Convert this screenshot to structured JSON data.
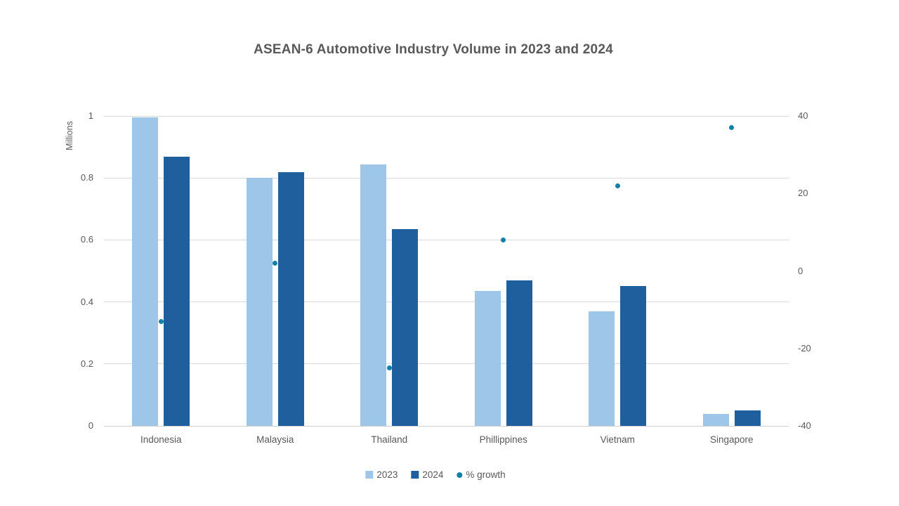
{
  "title": "ASEAN-6 Automotive Industry Volume in 2023 and 2024",
  "chart_data": {
    "type": "bar",
    "subtype": "combo-bar-scatter",
    "categories": [
      "Indonesia",
      "Malaysia",
      "Thailand",
      "Phillippines",
      "Vietnam",
      "Singapore"
    ],
    "series": [
      {
        "name": "2023",
        "type": "bar",
        "axis": "left",
        "color": "#9DC6E8",
        "values": [
          0.995,
          0.8,
          0.843,
          0.436,
          0.37,
          0.039
        ]
      },
      {
        "name": "2024",
        "type": "bar",
        "axis": "left",
        "color": "#205F9E",
        "values": [
          0.868,
          0.818,
          0.635,
          0.47,
          0.452,
          0.051
        ]
      },
      {
        "name": "% growth",
        "type": "scatter",
        "axis": "right",
        "color": "#1480A8",
        "values": [
          -13,
          2,
          -25,
          8,
          22,
          37
        ]
      }
    ],
    "left_axis": {
      "label": "Millions",
      "min": 0,
      "max": 1,
      "ticks": [
        1,
        0.8,
        0.6,
        0.4,
        0.2,
        0
      ]
    },
    "right_axis": {
      "label": "",
      "min": -40,
      "max": 40,
      "ticks": [
        40,
        20,
        0,
        -20,
        -40
      ]
    },
    "grid": true,
    "legend_position": "bottom",
    "legend": [
      "2023",
      "2024",
      "% growth"
    ]
  },
  "colors": {
    "bar_2023": "#9DC6E8",
    "bar_2024": "#205F9E",
    "growth_dot": "#1480A8",
    "gridline": "#D9D9D9",
    "text": "#595959",
    "background": "#FFFFFF"
  }
}
